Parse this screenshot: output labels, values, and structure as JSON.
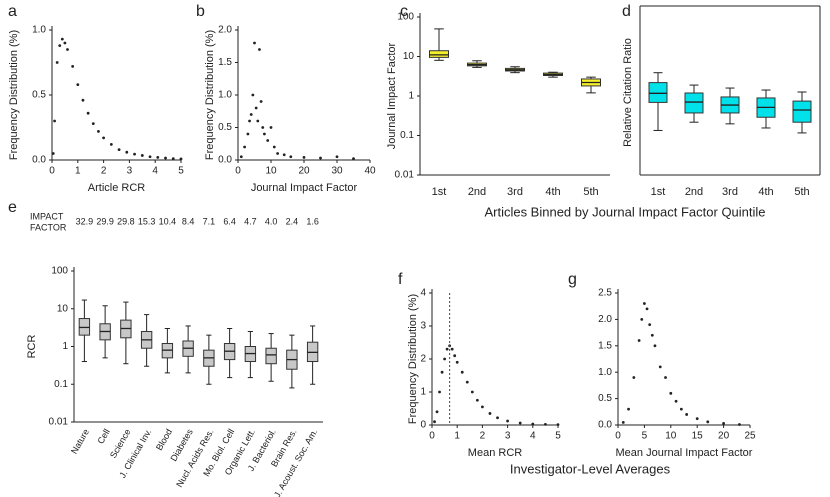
{
  "chart_data": [
    {
      "type": "scatter",
      "label": "a",
      "xlabel": "Article RCR",
      "ylabel": "Frequency Distribution (%)",
      "color": "#222222",
      "x": [
        0.05,
        0.1,
        0.2,
        0.3,
        0.4,
        0.5,
        0.6,
        0.8,
        1.0,
        1.2,
        1.4,
        1.6,
        1.8,
        2.0,
        2.3,
        2.6,
        2.9,
        3.2,
        3.5,
        3.8,
        4.1,
        4.4,
        4.7,
        5.0
      ],
      "y": [
        0.05,
        0.3,
        0.75,
        0.88,
        0.93,
        0.9,
        0.85,
        0.72,
        0.58,
        0.46,
        0.36,
        0.28,
        0.22,
        0.17,
        0.12,
        0.08,
        0.06,
        0.045,
        0.035,
        0.025,
        0.02,
        0.015,
        0.01,
        0.008
      ],
      "xlim": [
        0,
        5
      ],
      "xticks": [
        0,
        1,
        2,
        3,
        4,
        5
      ],
      "ylim": [
        0,
        1.0
      ],
      "yticks": [
        {
          "value": 0,
          "label": "0.0"
        },
        {
          "value": 0.5,
          "label": "0.5"
        },
        {
          "value": 1,
          "label": "1.0"
        }
      ]
    },
    {
      "type": "scatter",
      "label": "b",
      "xlabel": "Journal Impact Factor",
      "ylabel": "Frequency Distribution (%)",
      "color": "#222222",
      "x": [
        1,
        2,
        3,
        3.5,
        4,
        4.5,
        5,
        5.5,
        6,
        6.5,
        7,
        7.5,
        8,
        9,
        10,
        11,
        12,
        14,
        16,
        20,
        25,
        30,
        35
      ],
      "y": [
        0.05,
        0.2,
        0.4,
        0.6,
        0.7,
        1.0,
        1.8,
        0.8,
        0.6,
        1.7,
        0.9,
        0.5,
        0.4,
        0.3,
        0.5,
        0.2,
        0.1,
        0.08,
        0.05,
        0.04,
        0.03,
        0.05,
        0.02
      ],
      "xlim": [
        0,
        40
      ],
      "xticks": [
        0,
        10,
        20,
        30,
        40
      ],
      "ylim": [
        0,
        2.0
      ],
      "yticks": [
        {
          "value": 0,
          "label": "0.0"
        },
        {
          "value": 0.5,
          "label": "0.5"
        },
        {
          "value": 1,
          "label": "1.0"
        },
        {
          "value": 1.5,
          "label": "1.5"
        },
        {
          "value": 2,
          "label": "2.0"
        }
      ]
    },
    {
      "type": "box",
      "label": "c",
      "ylabel": "Journal Impact Factor",
      "color": "#f5ef2a",
      "log": true,
      "categories": [
        "1st",
        "2nd",
        "3rd",
        "4th",
        "5th"
      ],
      "low": [
        8,
        5.3,
        3.9,
        3.0,
        1.2
      ],
      "q1": [
        9.5,
        5.8,
        4.3,
        3.3,
        1.8
      ],
      "median": [
        11,
        6.2,
        4.6,
        3.5,
        2.2
      ],
      "q3": [
        14,
        6.8,
        5.0,
        3.8,
        2.7
      ],
      "high": [
        50,
        7.8,
        5.5,
        4.0,
        3.0
      ],
      "ylim": [
        0.01,
        100
      ],
      "yticks": [
        0.01,
        0.1,
        1,
        10,
        100
      ]
    },
    {
      "type": "box",
      "label": "d",
      "ylabel": "Relative Citation Ratio",
      "color": "#00e1ea",
      "frame": true,
      "categories": [
        "1st",
        "2nd",
        "3rd",
        "4th",
        "5th"
      ],
      "low": [
        2.7,
        3.2,
        3.1,
        2.85,
        2.55
      ],
      "q1": [
        4.4,
        3.76,
        3.76,
        3.5,
        3.2
      ],
      "median": [
        4.95,
        4.42,
        4.24,
        4.1,
        3.94
      ],
      "q3": [
        5.6,
        4.97,
        4.73,
        4.67,
        4.48
      ],
      "high": [
        6.2,
        5.45,
        5.27,
        5.15,
        5.03
      ],
      "ylim": [
        0,
        10
      ]
    },
    {
      "type": "box",
      "label": "e",
      "ylabel": "RCR",
      "color": "#c8c8c8",
      "log": true,
      "rotate": true,
      "impact_label": [
        "IMPACT",
        "FACTOR"
      ],
      "impact_factors": [
        "32.9",
        "29.9",
        "29.8",
        "15.3",
        "10.4",
        "8.4",
        "7.1",
        "6.4",
        "4.7",
        "4.0",
        "2.4",
        "1.6"
      ],
      "categories": [
        "Nature",
        "Cell",
        "Science",
        "J. Clinical Inv.",
        "Blood",
        "Diabetes",
        "Nucl. Acids Res.",
        "Mo. Biol. Cell",
        "Organic Lett.",
        "J. Bacteriol.",
        "Brain Res.",
        "J. Acoust. Soc. Am."
      ],
      "low": [
        0.4,
        0.5,
        0.35,
        0.3,
        0.2,
        0.2,
        0.1,
        0.15,
        0.15,
        0.12,
        0.08,
        0.1
      ],
      "q1": [
        2,
        1.5,
        1.7,
        0.9,
        0.5,
        0.55,
        0.3,
        0.45,
        0.4,
        0.35,
        0.25,
        0.4
      ],
      "median": [
        3.2,
        2.5,
        3,
        1.5,
        0.8,
        0.9,
        0.5,
        0.75,
        0.65,
        0.6,
        0.45,
        0.7
      ],
      "q3": [
        5.5,
        4,
        5,
        2.5,
        1.2,
        1.4,
        0.8,
        1.2,
        1.0,
        0.9,
        0.8,
        1.3
      ],
      "high": [
        17,
        12,
        15,
        7,
        3,
        3.5,
        2,
        3,
        2.5,
        2.2,
        2,
        3.5
      ],
      "ylim": [
        0.01,
        100
      ],
      "yticks": [
        0.01,
        0.1,
        1,
        10,
        100
      ]
    },
    {
      "type": "scatter",
      "label": "f",
      "xlabel": "Mean RCR",
      "ylabel": "Frequency Distribution (%)",
      "color": "#222222",
      "vline": 0.7,
      "x": [
        0.1,
        0.2,
        0.3,
        0.4,
        0.5,
        0.6,
        0.7,
        0.8,
        0.9,
        1.0,
        1.2,
        1.4,
        1.6,
        1.8,
        2.0,
        2.3,
        2.6,
        3.0,
        3.5,
        4.0,
        4.5,
        5.0
      ],
      "y": [
        0.1,
        0.4,
        1.0,
        1.6,
        2.0,
        2.3,
        2.4,
        2.3,
        2.1,
        1.9,
        1.6,
        1.3,
        1.0,
        0.75,
        0.55,
        0.35,
        0.22,
        0.12,
        0.06,
        0.03,
        0.02,
        0.01
      ],
      "xlim": [
        0,
        5
      ],
      "xticks": [
        0,
        1,
        2,
        3,
        4,
        5
      ],
      "ylim": [
        0,
        4
      ],
      "yticks": [
        0,
        1,
        2,
        3,
        4
      ]
    },
    {
      "type": "scatter",
      "label": "g",
      "xlabel": "Mean Journal Impact Factor",
      "color": "#222222",
      "x": [
        1,
        2,
        3,
        4,
        4.5,
        5,
        5.5,
        6,
        6.5,
        7,
        8,
        9,
        10,
        11,
        12,
        13,
        15,
        17,
        20,
        23
      ],
      "y": [
        0.05,
        0.3,
        0.9,
        1.6,
        2.0,
        2.3,
        2.2,
        1.9,
        1.7,
        1.5,
        1.1,
        0.9,
        0.6,
        0.45,
        0.3,
        0.2,
        0.12,
        0.06,
        0.03,
        0.01
      ],
      "xlim": [
        0,
        25
      ],
      "xticks": [
        0,
        5,
        10,
        15,
        20,
        25
      ],
      "ylim": [
        0,
        2.5
      ],
      "yticks": [
        {
          "value": 0,
          "label": "0.0"
        },
        {
          "value": 0.5,
          "label": "0.5"
        },
        {
          "value": 1,
          "label": "1.0"
        },
        {
          "value": 1.5,
          "label": "1.5"
        },
        {
          "value": 2,
          "label": "2.0"
        },
        {
          "value": 2.5,
          "label": "2.5"
        }
      ]
    }
  ],
  "captions": [
    "Articles Binned by Journal Impact Factor Quintile",
    "Investigator-Level Averages"
  ]
}
